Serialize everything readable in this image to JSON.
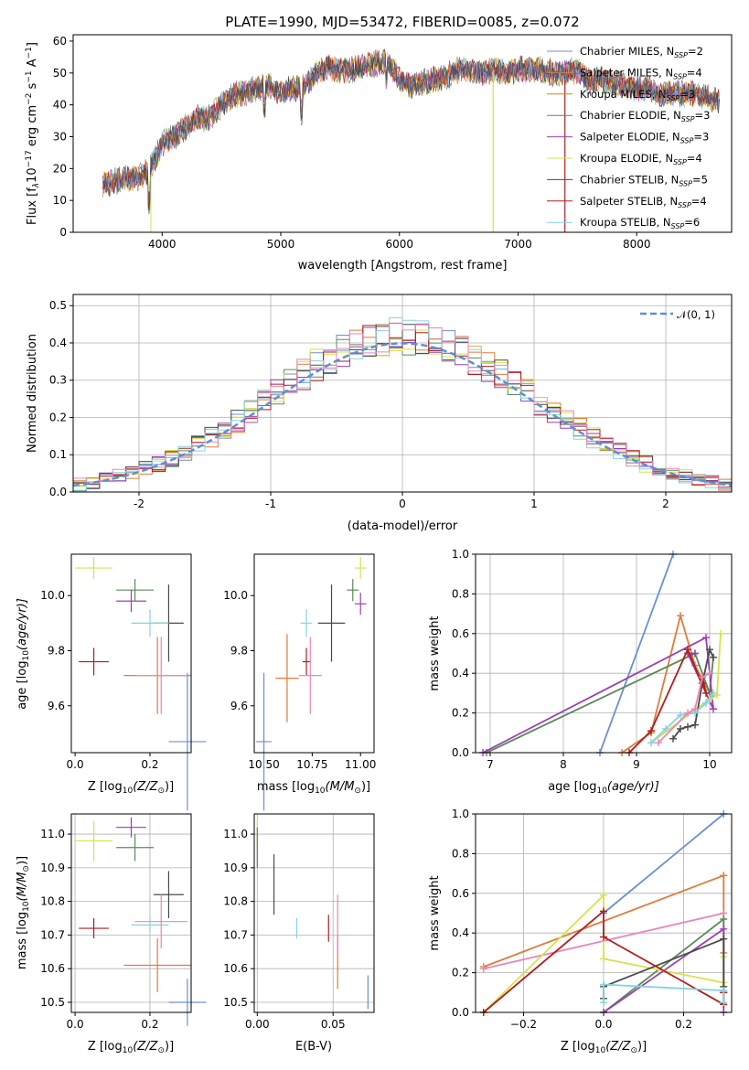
{
  "title": "PLATE=1990, MJD=53472, FIBERID=0085, z=0.072",
  "colors": {
    "Chabrier MILES": "#6a8fd4",
    "Salpeter MILES": "#e07b3a",
    "Kroupa MILES": "#c88a1c",
    "Chabrier ELODIE": "#5a8a5a",
    "Salpeter ELODIE": "#9b3fb0",
    "Kroupa ELODIE": "#d7e24b",
    "Chabrier STELIB": "#4a4a4a",
    "Salpeter STELIB": "#b01e1e",
    "Kroupa STELIB": "#82d4df",
    "gauss": "#5b8fd6",
    "pink": "#e887b8"
  },
  "chart_data": [
    {
      "id": "spectrum",
      "type": "line",
      "xlabel": "wavelength [Angstrom, rest frame]",
      "ylabel_main": "Flux [f",
      "ylabel_sub": "λ",
      "ylabel_mid": "10",
      "ylabel_exp": "−17",
      "ylabel_rest": " erg cm",
      "ylabel_exp2": "−2",
      "ylabel_rest2": " s",
      "ylabel_exp3": "−1",
      "ylabel_rest3": " A",
      "ylabel_exp4": "−1",
      "ylabel_end": "]",
      "xlim": [
        3250,
        8800
      ],
      "ylim": [
        0,
        62
      ],
      "xticks": [
        4000,
        5000,
        6000,
        7000,
        8000
      ],
      "yticks": [
        0,
        10,
        20,
        30,
        40,
        50,
        60
      ],
      "continuum_x": [
        3500,
        3600,
        3700,
        3800,
        3900,
        4000,
        4100,
        4200,
        4300,
        4400,
        4500,
        4600,
        4700,
        4800,
        4900,
        5000,
        5100,
        5200,
        5300,
        5400,
        5500,
        5600,
        5700,
        5800,
        5900,
        6000,
        6100,
        6200,
        6300,
        6400,
        6500,
        6600,
        6700,
        6800,
        6900,
        7000,
        7100,
        7200,
        7300,
        7400,
        7500,
        7600,
        7700,
        7800,
        7900,
        8000,
        8100,
        8200,
        8300,
        8400,
        8500,
        8600,
        8700
      ],
      "continuum_y": [
        15,
        16,
        17,
        17,
        20,
        28,
        30,
        33,
        36,
        36,
        40,
        43,
        44,
        45,
        46,
        44,
        45,
        46,
        50,
        52,
        51,
        51,
        52,
        53,
        54,
        48,
        46,
        47,
        48,
        49,
        51,
        51,
        50,
        51,
        50,
        51,
        51,
        51,
        50,
        50,
        51,
        47,
        48,
        47,
        46,
        45,
        45,
        43,
        44,
        43,
        44,
        42,
        41
      ],
      "legend": [
        {
          "name": "Chabrier MILES, N",
          "sub": "SSP",
          "suffix": "=2"
        },
        {
          "name": "Salpeter MILES, N",
          "sub": "SSP",
          "suffix": "=4"
        },
        {
          "name": "Kroupa MILES, N",
          "sub": "SSP",
          "suffix": "=3"
        },
        {
          "name": "Chabrier ELODIE, N",
          "sub": "SSP",
          "suffix": "=3"
        },
        {
          "name": "Salpeter ELODIE, N",
          "sub": "SSP",
          "suffix": "=3"
        },
        {
          "name": "Kroupa ELODIE, N",
          "sub": "SSP",
          "suffix": "=4"
        },
        {
          "name": "Chabrier STELIB, N",
          "sub": "SSP",
          "suffix": "=5"
        },
        {
          "name": "Salpeter STELIB, N",
          "sub": "SSP",
          "suffix": "=4"
        },
        {
          "name": "Kroupa STELIB, N",
          "sub": "SSP",
          "suffix": "=6"
        }
      ]
    },
    {
      "id": "histogram",
      "type": "line",
      "xlabel": "(data-model)/error",
      "ylabel": "Normed distribution",
      "xlim": [
        -2.5,
        2.5
      ],
      "ylim": [
        0,
        0.53
      ],
      "xticks": [
        -2,
        -1,
        0,
        1,
        2
      ],
      "ytick_labels": [
        "0.0",
        "0.1",
        "0.2",
        "0.3",
        "0.4",
        "0.5"
      ],
      "yticks": [
        0,
        0.1,
        0.2,
        0.3,
        0.4,
        0.5
      ],
      "legend_label": "𝒩(0, 1)",
      "bin_width": 0.1
    },
    {
      "id": "age_vs_Z",
      "type": "scatter",
      "xlabel": "Z [log",
      "xlabel_sub": "10",
      "xlabel_rest": "(Z/Z",
      "xlabel_sun": "⊙",
      "xlabel_end": ")]",
      "ylabel": "age  [log",
      "ylabel_sub": "10",
      "ylabel_rest": "(age/yr)]",
      "xlim": [
        -0.01,
        0.31
      ],
      "ylim": [
        9.43,
        10.15
      ],
      "xticks": [
        0.0,
        0.2
      ],
      "xtick_labels": [
        "0.0",
        "0.2"
      ],
      "yticks": [
        9.6,
        9.8,
        10.0
      ],
      "ytick_labels": [
        "9.6",
        "9.8",
        "10.0"
      ],
      "points": [
        {
          "model": "Chabrier MILES",
          "x": 0.3,
          "xerr": 0.05,
          "y": 9.47,
          "yerr": 0.25
        },
        {
          "model": "Salpeter MILES",
          "x": 0.22,
          "xerr": 0.09,
          "y": 9.71,
          "yerr": 0.14
        },
        {
          "model": "Kroupa ELODIE",
          "x": 0.05,
          "xerr": 0.05,
          "y": 10.1,
          "yerr": 0.04
        },
        {
          "model": "Chabrier ELODIE",
          "x": 0.16,
          "xerr": 0.05,
          "y": 10.02,
          "yerr": 0.04
        },
        {
          "model": "Salpeter ELODIE",
          "x": 0.15,
          "xerr": 0.04,
          "y": 9.98,
          "yerr": 0.04
        },
        {
          "model": "Chabrier STELIB",
          "x": 0.25,
          "xerr": 0.04,
          "y": 9.9,
          "yerr": 0.14
        },
        {
          "model": "Salpeter STELIB",
          "x": 0.05,
          "xerr": 0.04,
          "y": 9.76,
          "yerr": 0.05
        },
        {
          "model": "Kroupa STELIB",
          "x": 0.2,
          "xerr": 0.05,
          "y": 9.9,
          "yerr": 0.05
        },
        {
          "model": "pink",
          "x": 0.23,
          "xerr": 0.07,
          "y": 9.71,
          "yerr": 0.14
        }
      ]
    },
    {
      "id": "age_vs_mass",
      "type": "scatter",
      "xlabel": "mass [log",
      "xlabel_sub": "10",
      "xlabel_rest": "(M/M",
      "xlabel_sun": "⊙",
      "xlabel_end": ")]",
      "xlim": [
        10.45,
        11.07
      ],
      "ylim": [
        9.43,
        10.15
      ],
      "xticks": [
        10.5,
        10.75,
        11.0
      ],
      "xtick_labels": [
        "10.50",
        "10.75",
        "11.00"
      ],
      "yticks": [
        9.6,
        9.8,
        10.0
      ],
      "ytick_labels": [
        "9.6",
        "9.8",
        "10.0"
      ],
      "points": [
        {
          "model": "Chabrier MILES",
          "x": 10.5,
          "xerr": 0.04,
          "y": 9.47,
          "yerr": 0.25
        },
        {
          "model": "Salpeter MILES",
          "x": 10.62,
          "xerr": 0.06,
          "y": 9.7,
          "yerr": 0.16
        },
        {
          "model": "Kroupa ELODIE",
          "x": 11.0,
          "xerr": 0.03,
          "y": 10.1,
          "yerr": 0.04
        },
        {
          "model": "Chabrier ELODIE",
          "x": 10.96,
          "xerr": 0.03,
          "y": 10.02,
          "yerr": 0.04
        },
        {
          "model": "Salpeter ELODIE",
          "x": 11.0,
          "xerr": 0.03,
          "y": 9.97,
          "yerr": 0.04
        },
        {
          "model": "Chabrier STELIB",
          "x": 10.85,
          "xerr": 0.07,
          "y": 9.9,
          "yerr": 0.14
        },
        {
          "model": "Salpeter STELIB",
          "x": 10.72,
          "xerr": 0.02,
          "y": 9.76,
          "yerr": 0.05
        },
        {
          "model": "Kroupa STELIB",
          "x": 10.72,
          "xerr": 0.03,
          "y": 9.9,
          "yerr": 0.05
        },
        {
          "model": "pink",
          "x": 10.74,
          "xerr": 0.06,
          "y": 9.71,
          "yerr": 0.14
        }
      ]
    },
    {
      "id": "massweight_vs_age",
      "type": "line",
      "xlabel": "age  [log",
      "xlabel_sub": "10",
      "xlabel_rest": "(age/yr)]",
      "ylabel": "mass weight",
      "xlim": [
        6.8,
        10.3
      ],
      "ylim": [
        0,
        1.0
      ],
      "xticks": [
        7,
        8,
        9,
        10
      ],
      "yticks": [
        0,
        0.2,
        0.4,
        0.6,
        0.8,
        1.0
      ],
      "ytick_labels": [
        "0.0",
        "0.2",
        "0.4",
        "0.6",
        "0.8",
        "1.0"
      ],
      "series": [
        {
          "model": "Chabrier MILES",
          "x": [
            8.5,
            9.5
          ],
          "y": [
            0.0,
            1.0
          ]
        },
        {
          "model": "Salpeter MILES",
          "x": [
            8.8,
            9.2,
            9.6,
            9.8,
            10.0
          ],
          "y": [
            0.0,
            0.1,
            0.69,
            0.44,
            0.3
          ]
        },
        {
          "model": "Chabrier ELODIE",
          "x": [
            6.95,
            9.8,
            10.0,
            10.05
          ],
          "y": [
            0.0,
            0.5,
            0.3,
            0.48
          ]
        },
        {
          "model": "Salpeter ELODIE",
          "x": [
            6.9,
            9.95,
            10.05,
            9.7,
            9.8
          ],
          "y": [
            0.0,
            0.58,
            0.22,
            0.5,
            0.5
          ]
        },
        {
          "model": "Kroupa ELODIE",
          "x": [
            9.2,
            10.0,
            10.1,
            10.15
          ],
          "y": [
            0.05,
            0.27,
            0.29,
            0.6
          ]
        },
        {
          "model": "Chabrier STELIB",
          "x": [
            9.5,
            9.6,
            9.7,
            9.8,
            9.9,
            10.0,
            10.05
          ],
          "y": [
            0.07,
            0.12,
            0.13,
            0.14,
            0.35,
            0.52,
            0.48
          ]
        },
        {
          "model": "Salpeter STELIB",
          "x": [
            8.9,
            9.2,
            9.7,
            9.95,
            9.9
          ],
          "y": [
            0.0,
            0.11,
            0.52,
            0.3,
            0.38
          ]
        },
        {
          "model": "Kroupa STELIB",
          "x": [
            9.2,
            9.4,
            9.6,
            9.8,
            9.95,
            10.05
          ],
          "y": [
            0.05,
            0.12,
            0.19,
            0.2,
            0.25,
            0.3
          ]
        },
        {
          "model": "pink",
          "x": [
            9.3,
            9.7,
            9.8,
            9.9,
            10.0
          ],
          "y": [
            0.05,
            0.2,
            0.22,
            0.38,
            0.4
          ]
        }
      ]
    },
    {
      "id": "mass_vs_Z",
      "type": "scatter",
      "xlabel": "Z [log",
      "xlabel_sub": "10",
      "xlabel_rest": "(Z/Z",
      "xlabel_sun": "⊙",
      "xlabel_end": ")]",
      "ylabel": "mass [log",
      "ylabel_sub": "10",
      "ylabel_rest": "(M/M",
      "ylabel_sun": "⊙",
      "ylabel_end": ")]",
      "xlim": [
        -0.01,
        0.31
      ],
      "ylim": [
        10.47,
        11.06
      ],
      "xticks": [
        0.0,
        0.2
      ],
      "xtick_labels": [
        "0.0",
        "0.2"
      ],
      "yticks": [
        10.5,
        10.6,
        10.7,
        10.8,
        10.9,
        11.0
      ],
      "ytick_labels": [
        "10.5",
        "10.6",
        "10.7",
        "10.8",
        "10.9",
        "11.0"
      ],
      "points": [
        {
          "model": "Chabrier MILES",
          "x": 0.3,
          "xerr": 0.05,
          "y": 10.5,
          "yerr": 0.07
        },
        {
          "model": "Salpeter MILES",
          "x": 0.22,
          "xerr": 0.09,
          "y": 10.61,
          "yerr": 0.08
        },
        {
          "model": "Kroupa ELODIE",
          "x": 0.05,
          "xerr": 0.05,
          "y": 10.98,
          "yerr": 0.06
        },
        {
          "model": "Chabrier ELODIE",
          "x": 0.16,
          "xerr": 0.05,
          "y": 10.96,
          "yerr": 0.04
        },
        {
          "model": "Salpeter ELODIE",
          "x": 0.15,
          "xerr": 0.04,
          "y": 11.02,
          "yerr": 0.03
        },
        {
          "model": "Chabrier STELIB",
          "x": 0.25,
          "xerr": 0.04,
          "y": 10.82,
          "yerr": 0.07
        },
        {
          "model": "Salpeter STELIB",
          "x": 0.05,
          "xerr": 0.04,
          "y": 10.72,
          "yerr": 0.03
        },
        {
          "model": "Kroupa STELIB",
          "x": 0.2,
          "xerr": 0.05,
          "y": 10.73,
          "yerr": 0.02
        },
        {
          "model": "pink",
          "x": 0.23,
          "xerr": 0.07,
          "y": 10.74,
          "yerr": 0.08
        }
      ]
    },
    {
      "id": "mass_vs_ebv",
      "type": "scatter",
      "xlabel": "E(B-V)",
      "xlim": [
        -0.002,
        0.077
      ],
      "ylim": [
        10.47,
        11.06
      ],
      "xticks": [
        0.0,
        0.05
      ],
      "xtick_labels": [
        "0.00",
        "0.05"
      ],
      "yticks": [
        10.5,
        10.6,
        10.7,
        10.8,
        10.9,
        11.0
      ],
      "ytick_labels": [
        "10.5",
        "10.6",
        "10.7",
        "10.8",
        "10.9",
        "11.0"
      ],
      "points": [
        {
          "model": "Chabrier MILES",
          "x": 0.073,
          "y": 10.53,
          "yerr": 0.05
        },
        {
          "model": "Salpeter MILES",
          "x": 0.053,
          "y": 10.62,
          "yerr": 0.08
        },
        {
          "model": "pink",
          "x": 0.053,
          "y": 10.73,
          "yerr": 0.09
        },
        {
          "model": "Salpeter STELIB",
          "x": 0.047,
          "y": 10.72,
          "yerr": 0.04
        },
        {
          "model": "Kroupa STELIB",
          "x": 0.026,
          "y": 10.72,
          "yerr": 0.03
        },
        {
          "model": "Chabrier STELIB",
          "x": 0.011,
          "y": 10.85,
          "yerr": 0.09
        },
        {
          "model": "Kroupa ELODIE",
          "x": 0.0,
          "y": 11.0,
          "yerr": 0.04
        },
        {
          "model": "Chabrier ELODIE",
          "x": 0.0,
          "y": 10.96,
          "yerr": 0.06
        }
      ]
    },
    {
      "id": "massweight_vs_Z",
      "type": "line",
      "xlabel": "Z [log",
      "xlabel_sub": "10",
      "xlabel_rest": "(Z/Z",
      "xlabel_sun": "⊙",
      "xlabel_end": ")]",
      "ylabel": "mass weight",
      "xlim": [
        -0.32,
        0.32
      ],
      "ylim": [
        0,
        1.0
      ],
      "xticks": [
        -0.2,
        0.0,
        0.2
      ],
      "xtick_labels": [
        "−0.2",
        "0.0",
        "0.2"
      ],
      "yticks": [
        0,
        0.2,
        0.4,
        0.6,
        0.8,
        1.0
      ],
      "ytick_labels": [
        "0.0",
        "0.2",
        "0.4",
        "0.6",
        "0.8",
        "1.0"
      ],
      "series": [
        {
          "model": "Chabrier MILES",
          "x": [
            0.0,
            0.3
          ],
          "y": [
            0.5,
            1.0
          ]
        },
        {
          "model": "Salpeter MILES",
          "x": [
            -0.3,
            0.3,
            0.3
          ],
          "y": [
            0.23,
            0.69,
            0.3
          ]
        },
        {
          "model": "pink",
          "x": [
            -0.3,
            0.3
          ],
          "y": [
            0.22,
            0.5
          ]
        },
        {
          "model": "Chabrier ELODIE",
          "x": [
            0.0,
            0.3,
            0.3
          ],
          "y": [
            0.0,
            0.47,
            0.1
          ]
        },
        {
          "model": "Salpeter ELODIE",
          "x": [
            0.0,
            0.3,
            0.3
          ],
          "y": [
            0.0,
            0.42,
            0.0
          ]
        },
        {
          "model": "Kroupa ELODIE",
          "x": [
            -0.3,
            0.0,
            0.0,
            0.3,
            0.3
          ],
          "y": [
            0.0,
            0.59,
            0.27,
            0.15,
            0.28
          ]
        },
        {
          "model": "Chabrier STELIB",
          "x": [
            0.0,
            0.0,
            0.3,
            0.3
          ],
          "y": [
            0.07,
            0.13,
            0.37,
            0.13
          ]
        },
        {
          "model": "Salpeter STELIB",
          "x": [
            -0.3,
            0.0,
            0.0,
            0.3,
            0.3
          ],
          "y": [
            0.0,
            0.51,
            0.38,
            0.04,
            0.1
          ]
        },
        {
          "model": "Kroupa STELIB",
          "x": [
            0.0,
            0.0,
            0.3,
            0.3
          ],
          "y": [
            0.05,
            0.14,
            0.11,
            0.05
          ]
        }
      ]
    }
  ]
}
